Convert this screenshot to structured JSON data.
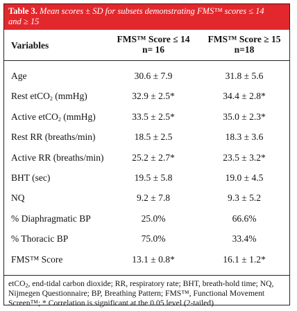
{
  "caption": {
    "label": "Table 3.",
    "text_line1": "Mean scores ± SD for subsets demonstrating FMS™ scores ≤ 14",
    "text_line2": "and ≥ 15"
  },
  "header": {
    "variables": "Variables",
    "col1_line1": "FMS™ Score ≤ 14",
    "col1_line2": "n= 16",
    "col2_line1": "FMS™ Score ≥ 15",
    "col2_line2": "n=18"
  },
  "rows": [
    {
      "pre": "Age",
      "sub": "",
      "post": "",
      "c1": "30.6 ± 7.9",
      "c2": "31.8 ± 5.6"
    },
    {
      "pre": "Rest etCO",
      "sub": "2",
      "post": " (mmHg)",
      "c1": "32.9 ± 2.5*",
      "c2": "34.4 ± 2.8*"
    },
    {
      "pre": "Active etCO",
      "sub": "2",
      "post": " (mmHg)",
      "c1": "33.5 ± 2.5*",
      "c2": "35.0 ± 2.3*"
    },
    {
      "pre": "Rest RR (breaths/min)",
      "sub": "",
      "post": "",
      "c1": "18.5 ± 2.5",
      "c2": "18.3 ± 3.6"
    },
    {
      "pre": "Active RR (breaths/min)",
      "sub": "",
      "post": "",
      "c1": "25.2 ± 2.7*",
      "c2": "23.5 ± 3.2*"
    },
    {
      "pre": "BHT (sec)",
      "sub": "",
      "post": "",
      "c1": "19.5 ± 5.8",
      "c2": "19.0 ± 4.5"
    },
    {
      "pre": "NQ",
      "sub": "",
      "post": "",
      "c1": "9.2 ± 7.8",
      "c2": "9.3 ± 5.2"
    },
    {
      "pre": "% Diaphragmatic BP",
      "sub": "",
      "post": "",
      "c1": "25.0%",
      "c2": "66.6%"
    },
    {
      "pre": "% Thoracic BP",
      "sub": "",
      "post": "",
      "c1": "75.0%",
      "c2": "33.4%"
    },
    {
      "pre": "FMS™ Score",
      "sub": "",
      "post": "",
      "c1": "13.1 ± 0.8*",
      "c2": "16.1 ± 1.2*"
    }
  ],
  "footnote": {
    "pre": "etCO",
    "sub": "2",
    "post": ", end-tidal carbon dioxide; RR, respiratory rate; BHT, breath-hold time; NQ, Nijmegen Questionnaire; BP, Breathing Pattern; FMS™, Functional Movement Screen™; * Correlation is significant at the 0.05 level (2-tailed)"
  }
}
